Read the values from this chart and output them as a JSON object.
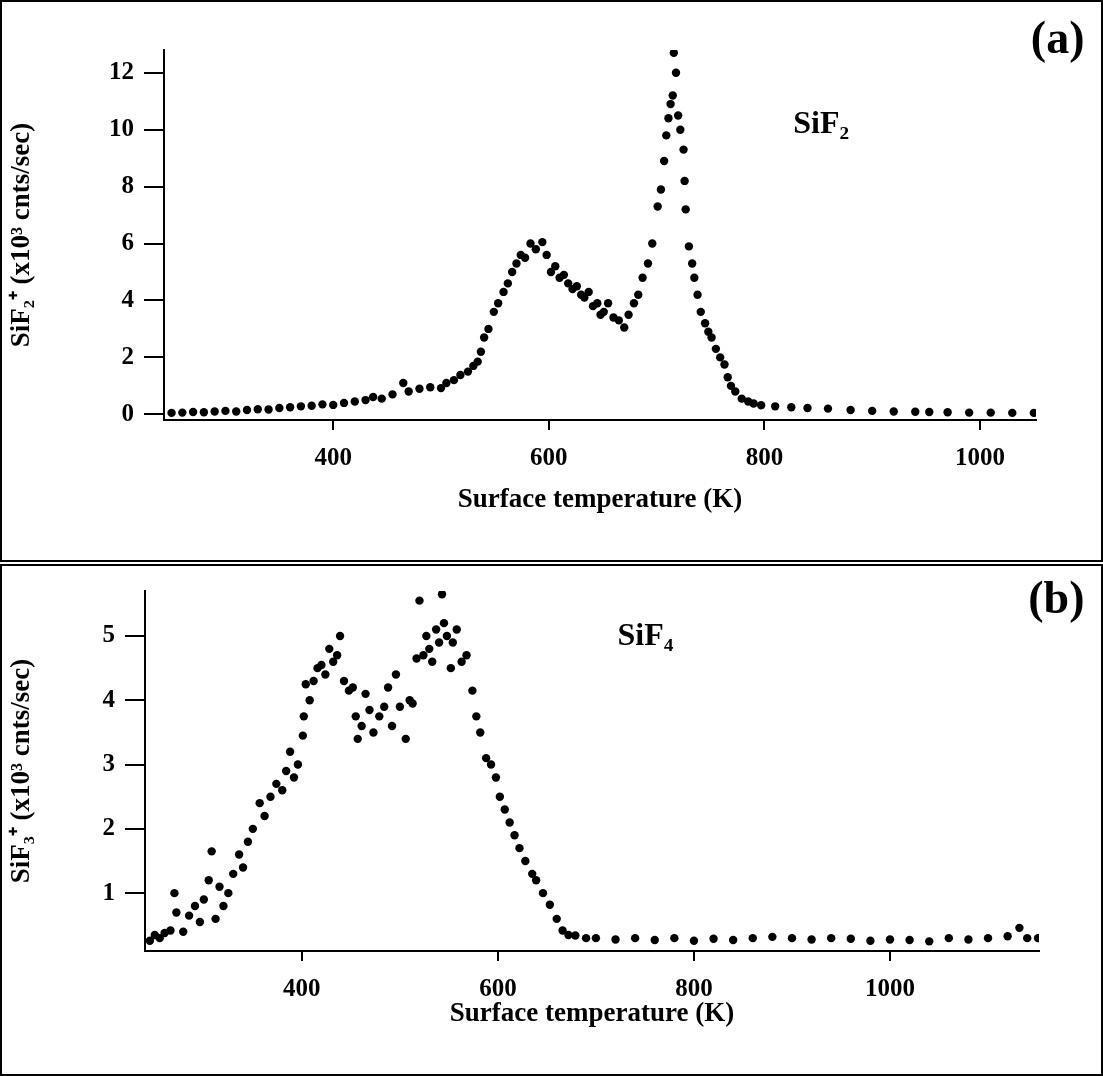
{
  "chart_data": [
    {
      "type": "scatter",
      "xlabel": "Surface temperature (K)",
      "ylabel": "SiF₂⁺ (x10³ cnts/sec)",
      "annotations": [
        "SiF₂",
        "(a)"
      ],
      "marker": "circle",
      "xlim": [
        243,
        1052
      ],
      "ylim": [
        -0.2,
        12.8
      ],
      "xticks": [
        400,
        600,
        800,
        1000
      ],
      "yticks": [
        0,
        2,
        4,
        6,
        8,
        10,
        12
      ],
      "x": [
        250,
        260,
        270,
        280,
        290,
        300,
        310,
        320,
        330,
        340,
        350,
        360,
        370,
        380,
        390,
        400,
        410,
        420,
        430,
        437,
        445,
        455,
        465,
        470,
        480,
        490,
        500,
        505,
        512,
        518,
        525,
        530,
        534,
        537,
        540,
        544,
        549,
        553,
        558,
        562,
        566,
        570,
        574,
        578,
        583,
        588,
        594,
        598,
        602,
        606,
        610,
        614,
        618,
        622,
        626,
        630,
        633,
        637,
        641,
        645,
        648,
        651,
        655,
        660,
        665,
        670,
        674,
        679,
        683,
        687,
        692,
        696,
        701,
        704,
        707,
        709,
        711,
        713,
        715,
        716,
        718,
        720,
        722,
        725,
        726,
        727,
        730,
        733,
        735,
        738,
        741,
        745,
        748,
        751,
        755,
        759,
        763,
        766,
        769,
        773,
        779,
        785,
        790,
        797,
        810,
        825,
        840,
        859,
        880,
        900,
        920,
        940,
        953,
        970,
        990,
        1010,
        1030,
        1050
      ],
      "series": [
        {
          "color": "#000000",
          "values": [
            0.05,
            0.06,
            0.08,
            0.07,
            0.1,
            0.12,
            0.1,
            0.15,
            0.18,
            0.17,
            0.22,
            0.25,
            0.28,
            0.3,
            0.35,
            0.33,
            0.4,
            0.45,
            0.5,
            0.61,
            0.55,
            0.7,
            1.1,
            0.8,
            0.9,
            0.95,
            0.92,
            1.1,
            1.2,
            1.38,
            1.5,
            1.7,
            1.85,
            2.2,
            2.7,
            3.0,
            3.6,
            3.9,
            4.3,
            4.6,
            5.0,
            5.3,
            5.6,
            5.5,
            6.0,
            5.8,
            6.05,
            5.6,
            5.0,
            5.2,
            4.8,
            4.9,
            4.6,
            4.4,
            4.5,
            4.2,
            4.1,
            4.3,
            3.8,
            3.9,
            3.5,
            3.6,
            3.9,
            3.4,
            3.3,
            3.05,
            3.5,
            3.9,
            4.2,
            4.8,
            5.3,
            6.0,
            7.3,
            7.9,
            8.9,
            9.8,
            10.4,
            10.9,
            11.2,
            12.7,
            12.0,
            10.5,
            10.0,
            9.3,
            8.2,
            7.2,
            5.9,
            5.3,
            4.8,
            4.2,
            3.6,
            3.2,
            2.9,
            2.7,
            2.3,
            2.0,
            1.75,
            1.3,
            1.0,
            0.8,
            0.55,
            0.45,
            0.38,
            0.32,
            0.28,
            0.25,
            0.22,
            0.2,
            0.15,
            0.12,
            0.1,
            0.09,
            0.08,
            0.07,
            0.06,
            0.06,
            0.05,
            0.05
          ]
        }
      ]
    },
    {
      "type": "scatter",
      "xlabel": "Surface temperature (K)",
      "ylabel": "SiF₃⁺ (x10³ cnts/sec)",
      "annotations": [
        "SiF₄",
        "(b)"
      ],
      "marker": "circle",
      "xlim": [
        240,
        1152
      ],
      "ylim": [
        0.1,
        5.7
      ],
      "xticks": [
        400,
        600,
        800,
        1000
      ],
      "yticks": [
        1,
        2,
        3,
        4,
        5
      ],
      "x": [
        245,
        250,
        255,
        260,
        266,
        270,
        272,
        279,
        285,
        291,
        296,
        300,
        305,
        308,
        312,
        316,
        320,
        325,
        330,
        336,
        340,
        345,
        350,
        357,
        362,
        368,
        374,
        380,
        384,
        388,
        392,
        396,
        401,
        402,
        404,
        408,
        412,
        416,
        420,
        424,
        428,
        432,
        436,
        439,
        443,
        448,
        452,
        455,
        457,
        461,
        465,
        469,
        473,
        479,
        484,
        488,
        492,
        496,
        500,
        506,
        510,
        513,
        517,
        520,
        524,
        527,
        530,
        533,
        537,
        540,
        543,
        545,
        548,
        552,
        554,
        558,
        563,
        568,
        574,
        578,
        582,
        588,
        593,
        598,
        602,
        607,
        612,
        617,
        622,
        628,
        635,
        639,
        646,
        653,
        660,
        666,
        672,
        679,
        690,
        700,
        720,
        740,
        760,
        780,
        800,
        820,
        840,
        860,
        880,
        900,
        920,
        940,
        960,
        980,
        1000,
        1020,
        1040,
        1060,
        1080,
        1100,
        1120,
        1132,
        1140,
        1151
      ],
      "series": [
        {
          "color": "#000000",
          "values": [
            0.26,
            0.35,
            0.3,
            0.38,
            0.42,
            1.0,
            0.7,
            0.4,
            0.65,
            0.8,
            0.55,
            0.9,
            1.2,
            1.65,
            0.6,
            1.1,
            0.8,
            1.0,
            1.3,
            1.6,
            1.4,
            1.8,
            2.0,
            2.4,
            2.2,
            2.5,
            2.7,
            2.6,
            2.9,
            3.2,
            2.8,
            3.0,
            3.45,
            3.75,
            4.25,
            4.0,
            4.3,
            4.5,
            4.55,
            4.4,
            4.8,
            4.6,
            4.7,
            5.0,
            4.3,
            4.15,
            4.2,
            3.75,
            3.4,
            3.6,
            4.1,
            3.85,
            3.5,
            3.75,
            3.9,
            4.2,
            3.6,
            4.4,
            3.9,
            3.4,
            4.0,
            3.95,
            4.65,
            5.55,
            4.7,
            5.0,
            4.8,
            4.6,
            5.1,
            4.9,
            5.65,
            5.2,
            5.0,
            4.5,
            4.9,
            5.1,
            4.6,
            4.7,
            4.15,
            3.75,
            3.5,
            3.1,
            3.0,
            2.8,
            2.5,
            2.3,
            2.1,
            1.9,
            1.7,
            1.5,
            1.3,
            1.2,
            1.0,
            0.82,
            0.6,
            0.42,
            0.35,
            0.34,
            0.3,
            0.3,
            0.28,
            0.3,
            0.27,
            0.3,
            0.26,
            0.29,
            0.27,
            0.3,
            0.32,
            0.3,
            0.28,
            0.3,
            0.29,
            0.26,
            0.28,
            0.27,
            0.25,
            0.3,
            0.28,
            0.3,
            0.33,
            0.46,
            0.3,
            0.3
          ]
        }
      ]
    }
  ]
}
